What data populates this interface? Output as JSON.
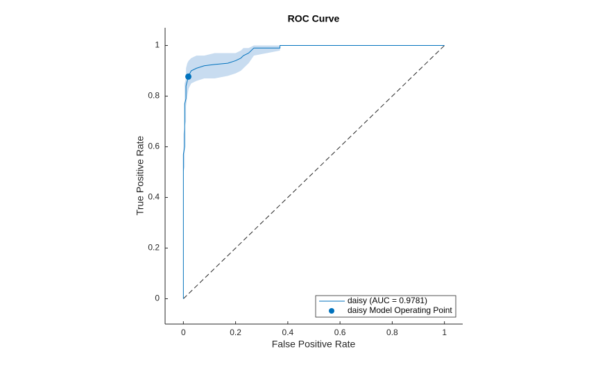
{
  "chart_data": {
    "type": "line",
    "title": "ROC Curve",
    "xlabel": "False Positive Rate",
    "ylabel": "True Positive Rate",
    "xlim": [
      -0.07,
      1.07
    ],
    "ylim": [
      -0.1,
      1.07
    ],
    "xticks": [
      0,
      0.2,
      0.4,
      0.6,
      0.8,
      1
    ],
    "yticks": [
      0,
      0.2,
      0.4,
      0.6,
      0.8,
      1
    ],
    "legend": "lower right",
    "series": [
      {
        "name": "daisy (AUC = 0.9781)",
        "color": "#0072bd",
        "band_color": "#c8dcf0",
        "x": [
          0,
          0,
          0.005,
          0.005,
          0.01,
          0.01,
          0.015,
          0.02,
          0.03,
          0.05,
          0.08,
          0.12,
          0.17,
          0.2,
          0.22,
          0.23,
          0.25,
          0.27,
          0.37,
          0.37,
          1
        ],
        "values": [
          0,
          0.57,
          0.6,
          0.77,
          0.79,
          0.84,
          0.86,
          0.88,
          0.9,
          0.91,
          0.92,
          0.925,
          0.93,
          0.94,
          0.95,
          0.96,
          0.97,
          0.99,
          0.99,
          1,
          1
        ],
        "lower": [
          0,
          0.5,
          0.52,
          0.68,
          0.7,
          0.76,
          0.8,
          0.83,
          0.85,
          0.86,
          0.87,
          0.87,
          0.88,
          0.89,
          0.9,
          0.91,
          0.93,
          0.96,
          0.98,
          1,
          1
        ],
        "upper": [
          0,
          0.65,
          0.68,
          0.85,
          0.87,
          0.91,
          0.93,
          0.94,
          0.95,
          0.96,
          0.96,
          0.97,
          0.97,
          0.97,
          0.98,
          0.99,
          0.99,
          1,
          1,
          1,
          1
        ]
      }
    ],
    "operating_point": {
      "name": "daisy Model Operating Point",
      "color": "#0072bd",
      "x": 0.019,
      "y": 0.877
    },
    "reference": {
      "color": "#262626",
      "x": [
        0,
        1
      ],
      "y": [
        0,
        1
      ]
    }
  }
}
